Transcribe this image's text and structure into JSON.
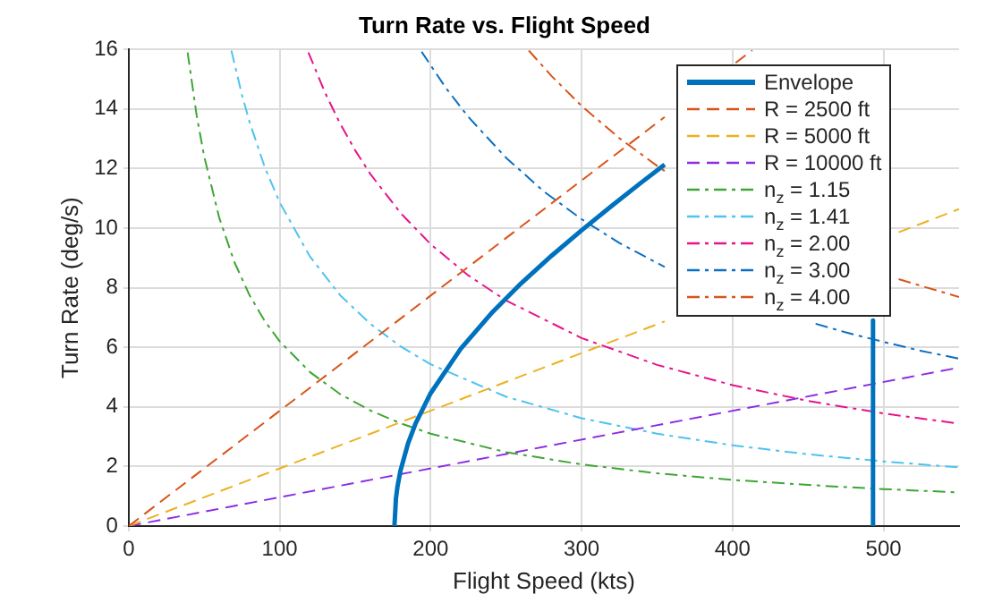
{
  "chart_data": {
    "type": "line",
    "title": "Turn Rate vs. Flight Speed",
    "xlabel": "Flight Speed (kts)",
    "ylabel": "Turn Rate (deg/s)",
    "xlim": [
      0,
      550
    ],
    "xticks": [
      0,
      100,
      200,
      300,
      400,
      500
    ],
    "ylim": [
      0,
      16
    ],
    "yticks": [
      0,
      2,
      4,
      6,
      8,
      10,
      12,
      14,
      16
    ],
    "grid": true,
    "legend": "top right",
    "marker": "none",
    "series": [
      {
        "name": "Envelope",
        "color": "#0072bd",
        "line_style": "solid",
        "x": [
          176,
          177,
          178,
          180,
          185,
          190,
          200,
          220,
          240,
          260,
          280,
          300,
          320,
          340,
          355,
          null,
          493,
          493
        ],
        "values": [
          0,
          0.93,
          1.32,
          1.86,
          2.77,
          3.44,
          4.46,
          5.96,
          7.13,
          8.15,
          9.07,
          9.93,
          10.75,
          11.55,
          12.13,
          null,
          6.9,
          0
        ]
      },
      {
        "name": "R = 2500 ft",
        "color": "#d95319",
        "line_style": "dashed",
        "x": [
          0,
          355,
          null,
          402,
          413
        ],
        "values": [
          0,
          13.73,
          null,
          15.55,
          15.97
        ]
      },
      {
        "name": "R = 5000 ft",
        "color": "#edb120",
        "line_style": "dashed",
        "x": [
          0,
          355,
          null,
          510,
          550
        ],
        "values": [
          0,
          6.87,
          null,
          9.86,
          10.64
        ]
      },
      {
        "name": "R = 10000 ft",
        "color": "#8c2be2",
        "line_style": "dashed",
        "x": [
          0,
          550
        ],
        "values": [
          0,
          5.32
        ]
      },
      {
        "name": "n$_{z}$ = 1.15",
        "color": "#3fa535",
        "line_style": "dashdot",
        "x": [
          39,
          45,
          50,
          60,
          70,
          80,
          90,
          100,
          120,
          140,
          160,
          180,
          200,
          250,
          300,
          350,
          400,
          450,
          500,
          550
        ],
        "values": [
          15.9,
          13.78,
          12.4,
          10.34,
          8.86,
          7.75,
          6.89,
          6.2,
          5.17,
          4.43,
          3.88,
          3.45,
          3.1,
          2.48,
          2.07,
          1.77,
          1.55,
          1.38,
          1.24,
          1.13
        ]
      },
      {
        "name": "n$_{z}$ = 1.41",
        "color": "#4dc3ee",
        "line_style": "dashdot",
        "x": [
          68,
          75,
          80,
          90,
          100,
          120,
          140,
          160,
          180,
          200,
          250,
          300,
          350,
          400,
          450,
          500,
          550
        ],
        "values": [
          15.96,
          14.47,
          13.57,
          12.06,
          10.86,
          9.05,
          7.75,
          6.79,
          6.03,
          5.43,
          4.34,
          3.62,
          3.1,
          2.71,
          2.41,
          2.17,
          1.97
        ]
      },
      {
        "name": "n$_{z}$ = 2.00",
        "color": "#e6148c",
        "line_style": "dashdot",
        "x": [
          119,
          130,
          140,
          150,
          160,
          180,
          200,
          225,
          250,
          300,
          350,
          400,
          450,
          500,
          550
        ],
        "values": [
          15.9,
          14.55,
          13.51,
          12.61,
          11.82,
          10.51,
          9.46,
          8.41,
          7.57,
          6.31,
          5.41,
          4.73,
          4.2,
          3.78,
          3.44
        ]
      },
      {
        "name": "n$_{z}$ = 3.00",
        "color": "#0a6fc2",
        "line_style": "dashdot",
        "x": [
          194,
          210,
          225,
          250,
          275,
          300,
          325,
          350,
          355,
          null,
          455,
          475,
          500,
          525,
          550
        ],
        "values": [
          15.92,
          14.71,
          13.73,
          12.36,
          11.23,
          10.3,
          9.5,
          8.83,
          8.7,
          null,
          6.79,
          6.5,
          6.18,
          5.88,
          5.62
        ]
      },
      {
        "name": "n$_{z}$ = 4.00",
        "color": "#d95319",
        "line_style": "dashdot",
        "x": [
          265,
          280,
          300,
          325,
          350,
          355,
          null,
          510,
          525,
          550
        ],
        "values": [
          15.96,
          15.11,
          14.1,
          13.02,
          12.09,
          11.92,
          null,
          8.29,
          8.06,
          7.69
        ]
      }
    ]
  }
}
